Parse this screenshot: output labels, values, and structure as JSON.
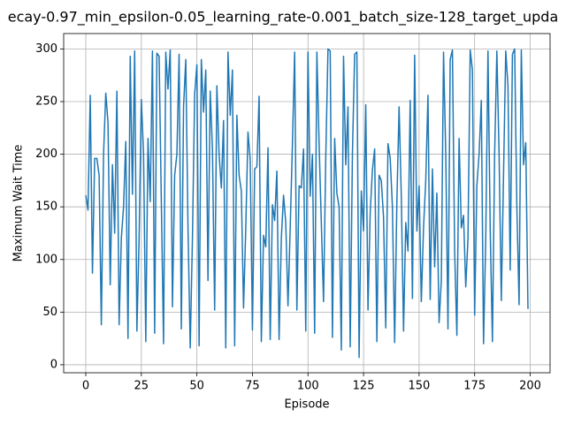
{
  "chart_data": {
    "type": "line",
    "title": "ecay-0.97_min_epsilon-0.05_learning_rate-0.001_batch_size-128_target_upda",
    "xlabel": "Episode",
    "ylabel": "Maximum Wait Time",
    "color": "#1f77b4",
    "grid": true,
    "xlim": [
      -9.95,
      208.95
    ],
    "ylim": [
      -7.6,
      314.6
    ],
    "xticks": [
      0,
      25,
      50,
      75,
      100,
      125,
      150,
      175,
      200
    ],
    "yticks": [
      0,
      50,
      100,
      150,
      200,
      250,
      300
    ],
    "x": [
      0,
      1,
      2,
      3,
      4,
      5,
      6,
      7,
      8,
      9,
      10,
      11,
      12,
      13,
      14,
      15,
      16,
      17,
      18,
      19,
      20,
      21,
      22,
      23,
      24,
      25,
      26,
      27,
      28,
      29,
      30,
      31,
      32,
      33,
      34,
      35,
      36,
      37,
      38,
      39,
      40,
      41,
      42,
      43,
      44,
      45,
      46,
      47,
      48,
      49,
      50,
      51,
      52,
      53,
      54,
      55,
      56,
      57,
      58,
      59,
      60,
      61,
      62,
      63,
      64,
      65,
      66,
      67,
      68,
      69,
      70,
      71,
      72,
      73,
      74,
      75,
      76,
      77,
      78,
      79,
      80,
      81,
      82,
      83,
      84,
      85,
      86,
      87,
      88,
      89,
      90,
      91,
      92,
      93,
      94,
      95,
      96,
      97,
      98,
      99,
      100,
      101,
      102,
      103,
      104,
      105,
      106,
      107,
      108,
      109,
      110,
      111,
      112,
      113,
      114,
      115,
      116,
      117,
      118,
      119,
      120,
      121,
      122,
      123,
      124,
      125,
      126,
      127,
      128,
      129,
      130,
      131,
      132,
      133,
      134,
      135,
      136,
      137,
      138,
      139,
      140,
      141,
      142,
      143,
      144,
      145,
      146,
      147,
      148,
      149,
      150,
      151,
      152,
      153,
      154,
      155,
      156,
      157,
      158,
      159,
      160,
      161,
      162,
      163,
      164,
      165,
      166,
      167,
      168,
      169,
      170,
      171,
      172,
      173,
      174,
      175,
      176,
      177,
      178,
      179,
      180,
      181,
      182,
      183,
      184,
      185,
      186,
      187,
      188,
      189,
      190,
      191,
      192,
      193,
      194,
      195,
      196,
      197,
      198,
      199
    ],
    "values": [
      161,
      147,
      256,
      87,
      196,
      196,
      180,
      38,
      200,
      258,
      230,
      76,
      190,
      125,
      260,
      38,
      120,
      150,
      212,
      25,
      293,
      162,
      298,
      32,
      120,
      252,
      200,
      22,
      215,
      155,
      298,
      30,
      296,
      293,
      155,
      20,
      297,
      262,
      299,
      55,
      180,
      200,
      295,
      34,
      245,
      290,
      130,
      16,
      120,
      257,
      285,
      18,
      290,
      240,
      280,
      80,
      260,
      205,
      52,
      265,
      200,
      168,
      232,
      16,
      297,
      237,
      280,
      18,
      237,
      180,
      165,
      54,
      130,
      221,
      195,
      33,
      186,
      188,
      255,
      22,
      123,
      112,
      206,
      24,
      152,
      137,
      184,
      24,
      120,
      161,
      135,
      56,
      130,
      210,
      297,
      52,
      170,
      168,
      205,
      32,
      297,
      160,
      200,
      30,
      297,
      210,
      135,
      60,
      197,
      300,
      298,
      26,
      215,
      163,
      150,
      14,
      293,
      190,
      245,
      17,
      201,
      295,
      297,
      7,
      165,
      127,
      247,
      52,
      145,
      185,
      205,
      22,
      180,
      175,
      140,
      35,
      210,
      196,
      150,
      21,
      155,
      245,
      160,
      32,
      135,
      108,
      251,
      63,
      294,
      127,
      170,
      60,
      130,
      175,
      256,
      62,
      186,
      93,
      163,
      40,
      80,
      297,
      200,
      34,
      290,
      299,
      108,
      28,
      215,
      130,
      142,
      74,
      120,
      299,
      280,
      47,
      170,
      200,
      251,
      20,
      120,
      298,
      130,
      22,
      200,
      298,
      200,
      61,
      180,
      298,
      265,
      90,
      295,
      300,
      150,
      57,
      299,
      190,
      211,
      53
    ]
  }
}
